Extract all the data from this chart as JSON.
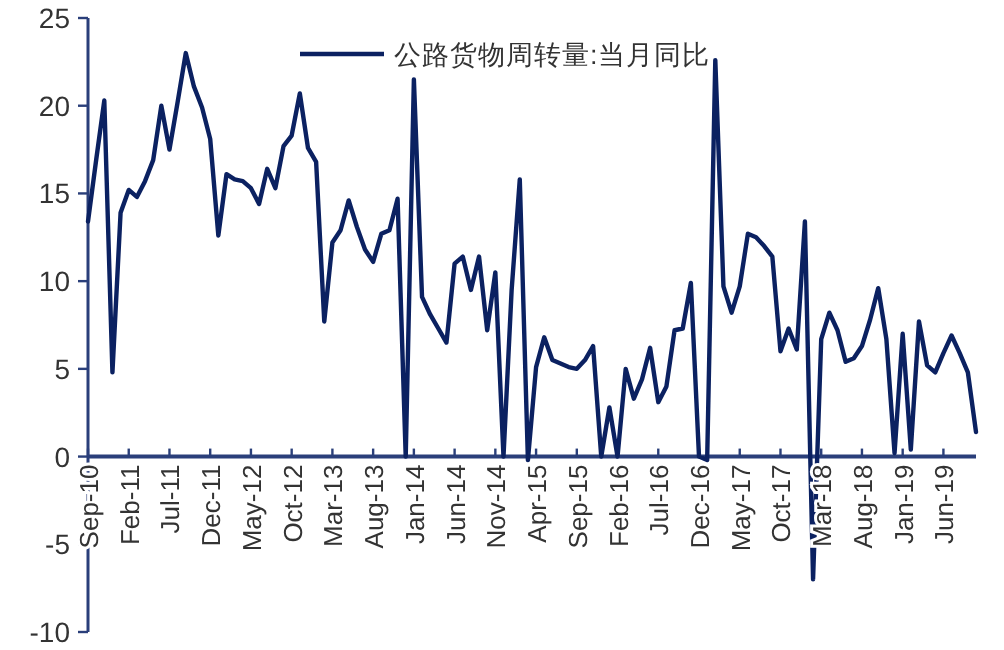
{
  "chart_data": {
    "type": "line",
    "x": [
      "2010-09",
      "2010-10",
      "2010-11",
      "2010-12",
      "2011-01",
      "2011-02",
      "2011-03",
      "2011-04",
      "2011-05",
      "2011-06",
      "2011-07",
      "2011-08",
      "2011-09",
      "2011-10",
      "2011-11",
      "2011-12",
      "2012-01",
      "2012-02",
      "2012-03",
      "2012-04",
      "2012-05",
      "2012-06",
      "2012-07",
      "2012-08",
      "2012-09",
      "2012-10",
      "2012-11",
      "2012-12",
      "2013-01",
      "2013-02",
      "2013-03",
      "2013-04",
      "2013-05",
      "2013-06",
      "2013-07",
      "2013-08",
      "2013-09",
      "2013-10",
      "2013-11",
      "2013-12",
      "2014-01",
      "2014-02",
      "2014-03",
      "2014-04",
      "2014-05",
      "2014-06",
      "2014-07",
      "2014-08",
      "2014-09",
      "2014-10",
      "2014-11",
      "2014-12",
      "2015-01",
      "2015-02",
      "2015-03",
      "2015-04",
      "2015-05",
      "2015-06",
      "2015-07",
      "2015-08",
      "2015-09",
      "2015-10",
      "2015-11",
      "2015-12",
      "2016-01",
      "2016-02",
      "2016-03",
      "2016-04",
      "2016-05",
      "2016-06",
      "2016-07",
      "2016-08",
      "2016-09",
      "2016-10",
      "2016-11",
      "2016-12",
      "2017-01",
      "2017-02",
      "2017-03",
      "2017-04",
      "2017-05",
      "2017-06",
      "2017-07",
      "2017-08",
      "2017-09",
      "2017-10",
      "2017-11",
      "2017-12",
      "2018-01",
      "2018-02",
      "2018-03",
      "2018-04",
      "2018-05",
      "2018-06",
      "2018-07",
      "2018-08",
      "2018-09",
      "2018-10",
      "2018-11",
      "2018-12",
      "2019-01",
      "2019-02",
      "2019-03",
      "2019-04",
      "2019-05",
      "2019-06",
      "2019-07",
      "2019-08",
      "2019-09",
      "2019-10"
    ],
    "series": [
      {
        "name": "公路货物周转量:当月同比",
        "color": "#0b2161",
        "values": [
          13.4,
          16.9,
          20.3,
          4.8,
          13.9,
          15.2,
          14.8,
          15.7,
          16.9,
          20.0,
          17.5,
          20.2,
          23.0,
          21.1,
          19.9,
          18.1,
          12.6,
          16.1,
          15.8,
          15.7,
          15.3,
          14.4,
          16.4,
          15.3,
          17.7,
          18.3,
          20.7,
          17.6,
          16.8,
          7.7,
          12.2,
          12.9,
          14.6,
          13.1,
          11.8,
          11.1,
          12.7,
          12.9,
          14.7,
          0.0,
          21.5,
          9.1,
          8.1,
          7.3,
          6.5,
          11.0,
          11.4,
          9.5,
          11.4,
          7.2,
          10.5,
          0.0,
          9.5,
          15.8,
          -0.2,
          5.1,
          6.8,
          5.5,
          5.3,
          5.1,
          5.0,
          5.5,
          6.3,
          0.0,
          2.8,
          0.0,
          5.0,
          3.3,
          4.4,
          6.2,
          3.1,
          4.0,
          7.2,
          7.3,
          9.9,
          0.0,
          -0.2,
          22.6,
          9.7,
          8.2,
          9.7,
          12.7,
          12.5,
          12.0,
          11.4,
          6.0,
          7.3,
          6.1,
          13.4,
          -7.0,
          6.7,
          8.2,
          7.2,
          5.4,
          5.6,
          6.3,
          7.8,
          9.6,
          6.7,
          0.2,
          7.0,
          0.4,
          7.7,
          5.2,
          4.8,
          5.9,
          6.9,
          5.9,
          4.8,
          1.4
        ]
      }
    ],
    "xlim": [
      "2010-09",
      "2019-10"
    ],
    "xticks": [
      {
        "value": "2010-09",
        "label": "Sep-10"
      },
      {
        "value": "2011-02",
        "label": "Feb-11"
      },
      {
        "value": "2011-07",
        "label": "Jul-11"
      },
      {
        "value": "2011-12",
        "label": "Dec-11"
      },
      {
        "value": "2012-05",
        "label": "May-12"
      },
      {
        "value": "2012-10",
        "label": "Oct-12"
      },
      {
        "value": "2013-03",
        "label": "Mar-13"
      },
      {
        "value": "2013-08",
        "label": "Aug-13"
      },
      {
        "value": "2014-01",
        "label": "Jan-14"
      },
      {
        "value": "2014-06",
        "label": "Jun-14"
      },
      {
        "value": "2014-11",
        "label": "Nov-14"
      },
      {
        "value": "2015-04",
        "label": "Apr-15"
      },
      {
        "value": "2015-09",
        "label": "Sep-15"
      },
      {
        "value": "2016-02",
        "label": "Feb-16"
      },
      {
        "value": "2016-07",
        "label": "Jul-16"
      },
      {
        "value": "2016-12",
        "label": "Dec-16"
      },
      {
        "value": "2017-05",
        "label": "May-17"
      },
      {
        "value": "2017-10",
        "label": "Oct-17"
      },
      {
        "value": "2018-03",
        "label": "Mar-18"
      },
      {
        "value": "2018-08",
        "label": "Aug-18"
      },
      {
        "value": "2019-01",
        "label": "Jan-19"
      },
      {
        "value": "2019-06",
        "label": "Jun-19"
      }
    ],
    "ylim": [
      -10,
      25
    ],
    "yticks": [
      -10,
      -5,
      0,
      5,
      10,
      15,
      20,
      25
    ],
    "grid": false,
    "legend": "top",
    "marker": "none",
    "line_style": "solid"
  }
}
